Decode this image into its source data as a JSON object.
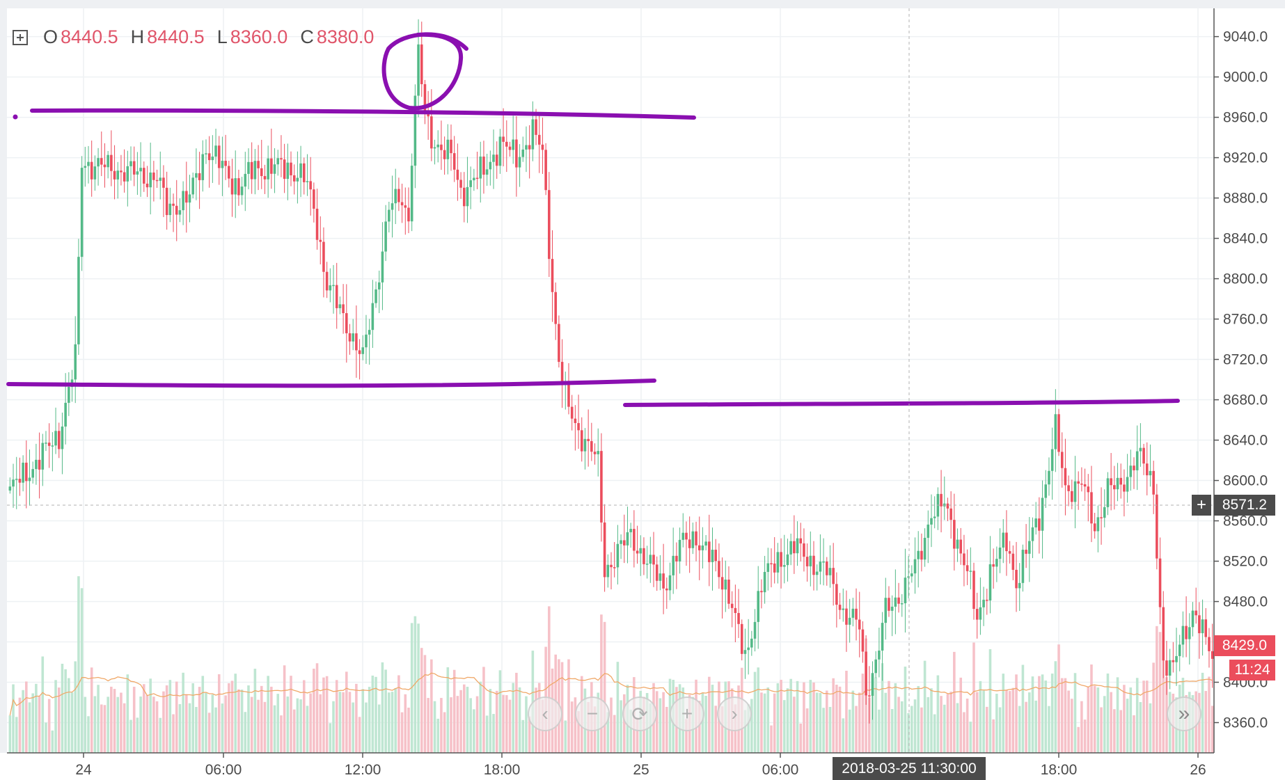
{
  "ohlc": {
    "o_label": "O",
    "o": "8440.5",
    "h_label": "H",
    "h": "8440.5",
    "l_label": "L",
    "l": "8360.0",
    "c_label": "C",
    "c": "8380.0"
  },
  "crosshair": {
    "price": "8571.2",
    "time": "2018-03-25 11:30:00"
  },
  "last_price": {
    "value": "8429.0",
    "countdown": "11:24"
  },
  "nav_buttons": [
    "‹",
    "−",
    "⟳",
    "+",
    "›"
  ],
  "scroll_button": "»",
  "colors": {
    "up": "#53b987",
    "down": "#eb4d5c",
    "up_vol": "#bfe6d2",
    "down_vol": "#f6c1c8",
    "ma": "#f0a868",
    "annotation": "#8a0fb0",
    "grid": "#eef1f4"
  },
  "chart_data": {
    "type": "candlestick",
    "title": "",
    "x_ticks": [
      "24",
      "06:00",
      "12:00",
      "18:00",
      "25",
      "06:00",
      "18:00",
      "26"
    ],
    "y_ticks": [
      "9040.0",
      "9000.0",
      "8960.0",
      "8920.0",
      "8880.0",
      "8840.0",
      "8800.0",
      "8760.0",
      "8720.0",
      "8680.0",
      "8640.0",
      "8600.0",
      "8560.0",
      "8520.0",
      "8480.0",
      "8440.0",
      "8400.0",
      "8360.0"
    ],
    "ylim": [
      8330,
      9068
    ],
    "grid": true,
    "annotations": [
      {
        "type": "hline",
        "price": 8966,
        "from": "start",
        "to": "24 21:00"
      },
      {
        "type": "hline",
        "price": 8690,
        "from": "start",
        "to": "25 00:30"
      },
      {
        "type": "hline",
        "price": 8667,
        "from": "25 00:00",
        "to": "26 00:00"
      },
      {
        "type": "circle",
        "around": "24 14:30 high"
      }
    ]
  }
}
